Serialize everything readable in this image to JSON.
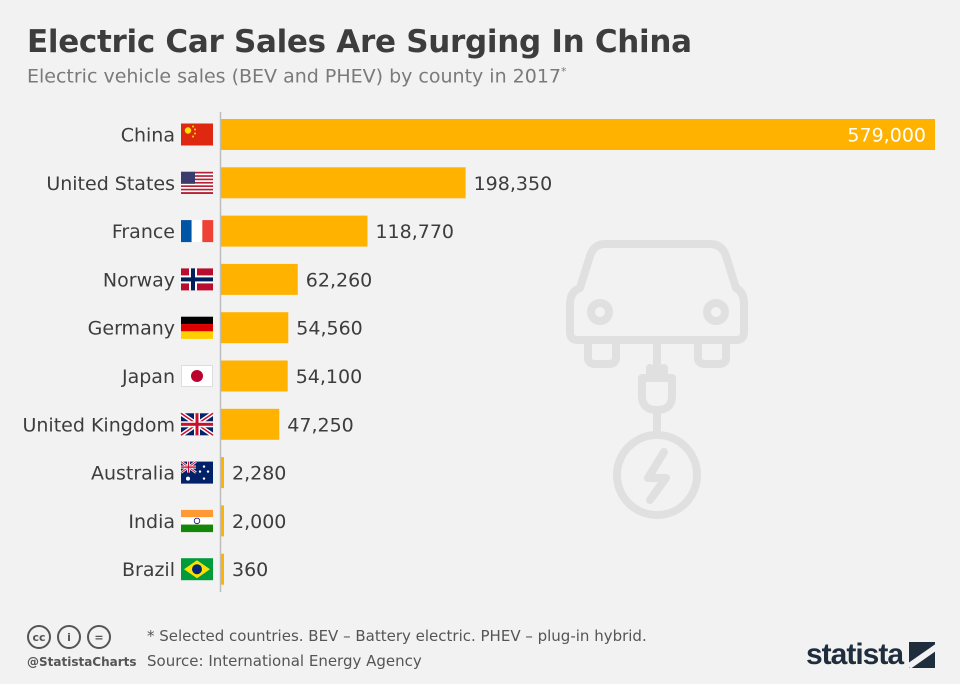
{
  "header": {
    "title": "Electric Car Sales Are Surging In China",
    "subtitle": "Electric vehicle sales (BEV and PHEV) by county in 2017",
    "subtitle_mark": "*"
  },
  "chart_data": {
    "type": "bar",
    "orientation": "horizontal",
    "title": "Electric Car Sales Are Surging In China",
    "subtitle": "Electric vehicle sales (BEV and PHEV) by county in 2017*",
    "categories": [
      "China",
      "United States",
      "France",
      "Norway",
      "Germany",
      "Japan",
      "United Kingdom",
      "Australia",
      "India",
      "Brazil"
    ],
    "values": [
      579000,
      198350,
      118770,
      62260,
      54560,
      54100,
      47250,
      2280,
      2000,
      360
    ],
    "value_labels": [
      "579,000",
      "198,350",
      "118,770",
      "62,260",
      "54,560",
      "54,100",
      "47,250",
      "2,280",
      "2,000",
      "360"
    ],
    "xlim": [
      0,
      579000
    ],
    "grid": false,
    "legend": "none",
    "bar_color": "#ffb300"
  },
  "flags": [
    "china-flag-icon",
    "usa-flag-icon",
    "france-flag-icon",
    "norway-flag-icon",
    "germany-flag-icon",
    "japan-flag-icon",
    "uk-flag-icon",
    "australia-flag-icon",
    "india-flag-icon",
    "brazil-flag-icon"
  ],
  "decoration": {
    "icon": "electric-car-plug-icon"
  },
  "footer": {
    "note": "* Selected countries. BEV – Battery electric. PHEV – plug-in hybrid.",
    "source": "Source: International Energy Agency",
    "handle": "@StatistaCharts",
    "cc_icons": [
      "cc",
      "i",
      "="
    ],
    "logo": "statista"
  }
}
